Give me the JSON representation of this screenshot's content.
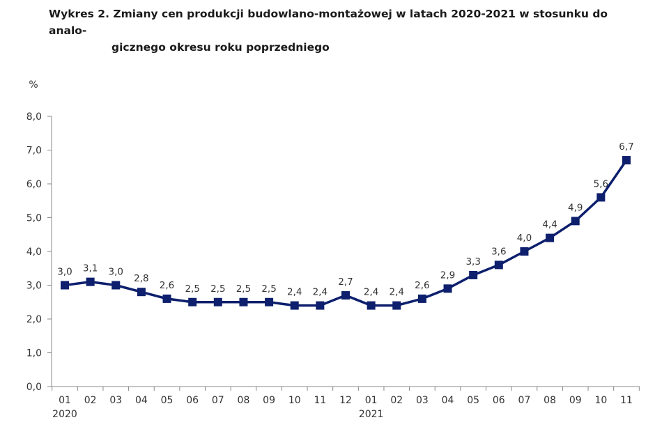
{
  "title": {
    "line1": "Wykres 2. Zmiany cen  produkcji budowlano-montażowej w latach 2020-2021 w stosunku do analo-",
    "line2": "gicznego okresu roku poprzedniego"
  },
  "chart_data": {
    "type": "line",
    "title": "Wykres 2. Zmiany cen  produkcji budowlano-montażowej w latach 2020-2021 w stosunku do analogicznego okresu roku poprzedniego",
    "ylabel": "%",
    "xlabel": "",
    "ylim": [
      0,
      8
    ],
    "yticks": [
      "0,0",
      "1,0",
      "2,0",
      "3,0",
      "4,0",
      "5,0",
      "6,0",
      "7,0",
      "8,0"
    ],
    "grid": false,
    "categories": [
      "01",
      "02",
      "03",
      "04",
      "05",
      "06",
      "07",
      "08",
      "09",
      "10",
      "11",
      "12",
      "01",
      "02",
      "03",
      "04",
      "05",
      "06",
      "07",
      "08",
      "09",
      "10",
      "11"
    ],
    "year_labels": [
      {
        "index": 0,
        "label": "2020"
      },
      {
        "index": 12,
        "label": "2021"
      }
    ],
    "series": [
      {
        "name": "Zmiany cen produkcji budowlano-montażowej",
        "color": "#0d1f6d",
        "values": [
          3.0,
          3.1,
          3.0,
          2.8,
          2.6,
          2.5,
          2.5,
          2.5,
          2.5,
          2.4,
          2.4,
          2.7,
          2.4,
          2.4,
          2.6,
          2.9,
          3.3,
          3.6,
          4.0,
          4.4,
          4.9,
          5.6,
          6.7
        ],
        "labels": [
          "3,0",
          "3,1",
          "3,0",
          "2,8",
          "2,6",
          "2,5",
          "2,5",
          "2,5",
          "2,5",
          "2,4",
          "2,4",
          "2,7",
          "2,4",
          "2,4",
          "2,6",
          "2,9",
          "3,3",
          "3,6",
          "4,0",
          "4,4",
          "4,9",
          "5,6",
          "6,7"
        ]
      }
    ]
  }
}
